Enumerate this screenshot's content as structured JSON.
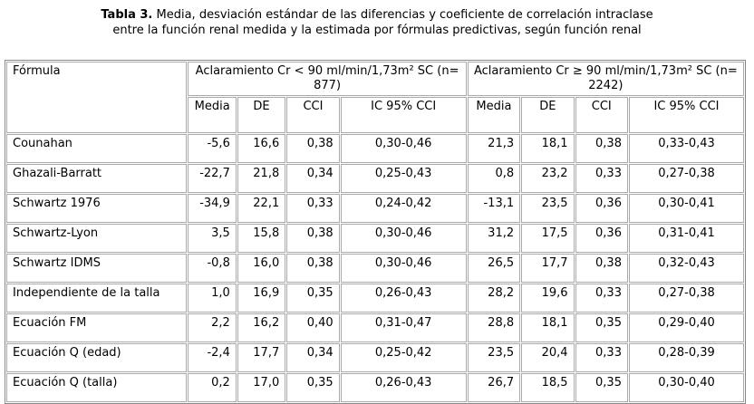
{
  "title": {
    "label": "Tabla 3.",
    "lines": [
      "Media, desviación estándar de las diferencias y coeficiente de correlación intraclase",
      "entre la función renal medida y la estimada por fórmulas predictivas, según función renal"
    ]
  },
  "table": {
    "header": {
      "first": "Fórmula",
      "groups": [
        "Aclaramiento Cr < 90 ml/min/1,73m² SC (n= 877)",
        "Aclaramiento Cr ≥ 90 ml/min/1,73m² SC (n= 2242)"
      ],
      "columns": [
        "Media",
        "DE",
        "CCI",
        "IC 95% CCI"
      ]
    },
    "rows": [
      [
        "Counahan",
        "-5,6",
        "16,6",
        "0,38",
        "0,30-0,46",
        "21,3",
        "18,1",
        "0,38",
        "0,33-0,43"
      ],
      [
        "Ghazali-Barratt",
        "-22,7",
        "21,8",
        "0,34",
        "0,25-0,43",
        "0,8",
        "23,2",
        "0,33",
        "0,27-0,38"
      ],
      [
        "Schwartz 1976",
        "-34,9",
        "22,1",
        "0,33",
        "0,24-0,42",
        "-13,1",
        "23,5",
        "0,36",
        "0,30-0,41"
      ],
      [
        "Schwartz-Lyon",
        "3,5",
        "15,8",
        "0,38",
        "0,30-0,46",
        "31,2",
        "17,5",
        "0,36",
        "0,31-0,41"
      ],
      [
        "Schwartz IDMS",
        "-0,8",
        "16,0",
        "0,38",
        "0,30-0,46",
        "26,5",
        "17,7",
        "0,38",
        "0,32-0,43"
      ],
      [
        "Independiente de la talla",
        "1,0",
        "16,9",
        "0,35",
        "0,26-0,43",
        "28,2",
        "19,6",
        "0,33",
        "0,27-0,38"
      ],
      [
        "Ecuación FM",
        "2,2",
        "16,2",
        "0,40",
        "0,31-0,47",
        "28,8",
        "18,1",
        "0,35",
        "0,29-0,40"
      ],
      [
        "Ecuación Q (edad)",
        "-2,4",
        "17,7",
        "0,34",
        "0,25-0,42",
        "23,5",
        "20,4",
        "0,33",
        "0,28-0,39"
      ],
      [
        "Ecuación Q (talla)",
        "0,2",
        "17,0",
        "0,35",
        "0,26-0,43",
        "26,7",
        "18,5",
        "0,35",
        "0,30-0,40"
      ]
    ]
  }
}
